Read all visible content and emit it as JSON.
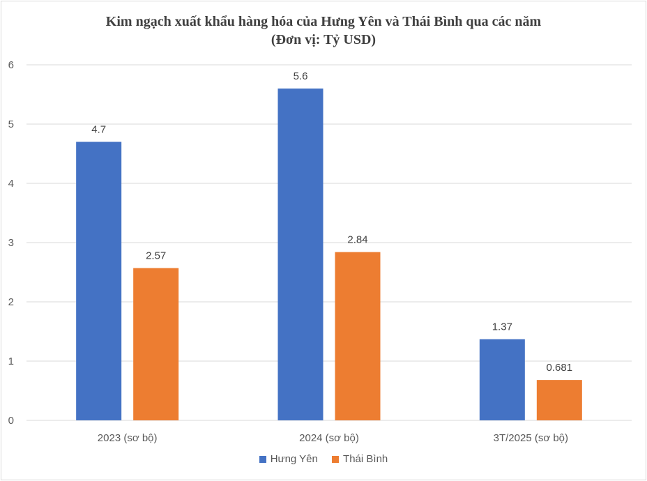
{
  "chart_data": {
    "type": "bar",
    "title_line1": "Kim ngạch xuất khẩu hàng hóa của Hưng Yên và Thái Bình qua các năm",
    "title_line2": "(Đơn vị: Tỷ USD)",
    "categories": [
      "2023 (sơ bộ)",
      "2024 (sơ bộ)",
      "3T/2025 (sơ bộ)"
    ],
    "series": [
      {
        "name": "Hưng Yên",
        "values": [
          4.7,
          5.6,
          1.37
        ],
        "labels": [
          "4.7",
          "5.6",
          "1.37"
        ],
        "color": "#4472c4"
      },
      {
        "name": "Thái Bình",
        "values": [
          2.57,
          2.84,
          0.681
        ],
        "labels": [
          "2.57",
          "2.84",
          "0.681"
        ],
        "color": "#ed7d31"
      }
    ],
    "ylim": [
      0,
      6
    ],
    "yticks": [
      0,
      1,
      2,
      3,
      4,
      5,
      6
    ],
    "grid": true,
    "legend": "bottom",
    "gridColor": "#d9d9d9"
  }
}
